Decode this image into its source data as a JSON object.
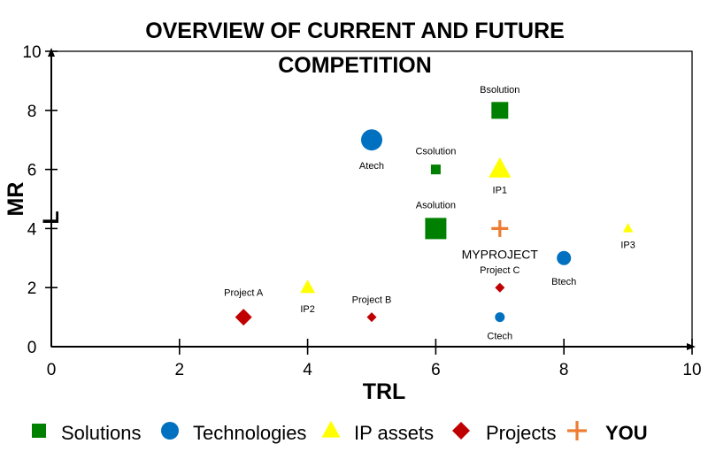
{
  "chart_data": {
    "type": "scatter",
    "title_line1": "OVERVIEW OF CURRENT AND FUTURE",
    "title_line2": "COMPETITION",
    "xlabel": "TRL",
    "ylabel": "MR",
    "ylabel_extra": "L",
    "xlim": [
      0,
      10
    ],
    "ylim": [
      0,
      10
    ],
    "x_ticks": [
      "0",
      "2",
      "4",
      "6",
      "8",
      "10"
    ],
    "y_ticks": [
      "0",
      "2",
      "4",
      "6",
      "8",
      "10"
    ],
    "grid": false,
    "legend_position": "bottom",
    "series": [
      {
        "name": "Solutions",
        "marker": "square",
        "color": "#008000",
        "points": [
          {
            "label": "Bsolution",
            "x": 7,
            "y": 8,
            "size": "large"
          },
          {
            "label": "Csolution",
            "x": 6,
            "y": 6,
            "size": "small"
          },
          {
            "label": "Asolution",
            "x": 6,
            "y": 4,
            "size": "xlarge"
          }
        ]
      },
      {
        "name": "Technologies",
        "marker": "circle",
        "color": "#0070C0",
        "points": [
          {
            "label": "Atech",
            "x": 5,
            "y": 7,
            "size": "xlarge"
          },
          {
            "label": "Btech",
            "x": 8,
            "y": 3,
            "size": "medium"
          },
          {
            "label": "Ctech",
            "x": 7,
            "y": 1,
            "size": "small"
          }
        ]
      },
      {
        "name": "IP assets",
        "marker": "triangle",
        "color": "#FFFF00",
        "points": [
          {
            "label": "IP1",
            "x": 7,
            "y": 6,
            "size": "xlarge"
          },
          {
            "label": "IP2",
            "x": 4,
            "y": 2,
            "size": "medium"
          },
          {
            "label": "IP3",
            "x": 9,
            "y": 4,
            "size": "small"
          }
        ]
      },
      {
        "name": "Projects",
        "marker": "diamond",
        "color": "#C00000",
        "points": [
          {
            "label": "Project A",
            "x": 3,
            "y": 1,
            "size": "large"
          },
          {
            "label": "Project B",
            "x": 5,
            "y": 1,
            "size": "small"
          },
          {
            "label": "Project C",
            "x": 7,
            "y": 2,
            "size": "small"
          }
        ]
      },
      {
        "name": "YOU",
        "marker": "plus",
        "color": "#ED7D31",
        "points": [
          {
            "label": "MYPROJECT",
            "x": 7,
            "y": 4,
            "size": "large"
          }
        ]
      }
    ]
  }
}
